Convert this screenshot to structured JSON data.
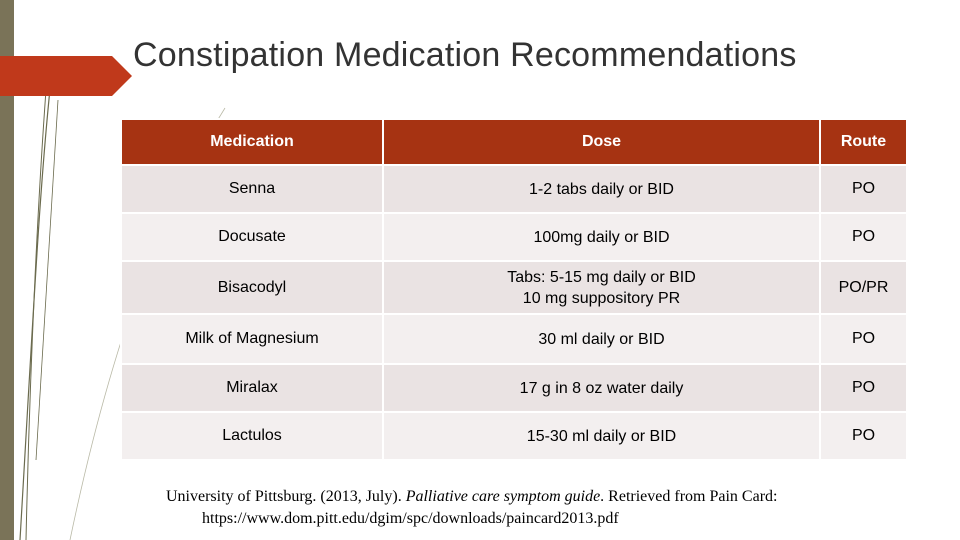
{
  "slide": {
    "title": "Constipation Medication Recommendations"
  },
  "table": {
    "headers": {
      "medication": "Medication",
      "dose": "Dose",
      "route": "Route"
    },
    "rows": [
      {
        "medication": "Senna",
        "dose": [
          "1-2 tabs daily or BID"
        ],
        "route": "PO"
      },
      {
        "medication": "Docusate",
        "dose": [
          "100mg daily or BID"
        ],
        "route": "PO"
      },
      {
        "medication": "Bisacodyl",
        "dose": [
          "Tabs: 5-15 mg daily or BID",
          "10 mg suppository PR"
        ],
        "route": "PO/PR"
      },
      {
        "medication": "Milk of Magnesium",
        "dose": [
          "30 ml daily or BID"
        ],
        "route": "PO"
      },
      {
        "medication": "Miralax",
        "dose": [
          "17 g in 8 oz water daily"
        ],
        "route": "PO"
      },
      {
        "medication": "Lactulos",
        "dose": [
          "15-30 ml daily or BID"
        ],
        "route": "PO"
      }
    ]
  },
  "citation": {
    "prefix": "University of Pittsburg. (2013, July). ",
    "guide_title": "Palliative care symptom guide",
    "suffix": ". Retrieved from Pain Card:",
    "url": "https://www.dom.pitt.edu/dgim/spc/downloads/paincard2013.pdf"
  },
  "colors": {
    "header_bg": "#a63312",
    "row_bg": "#eae3e3",
    "alt_row_bg": "#f3efef",
    "side_bar": "#7a7358",
    "accent": "#c0391b"
  }
}
